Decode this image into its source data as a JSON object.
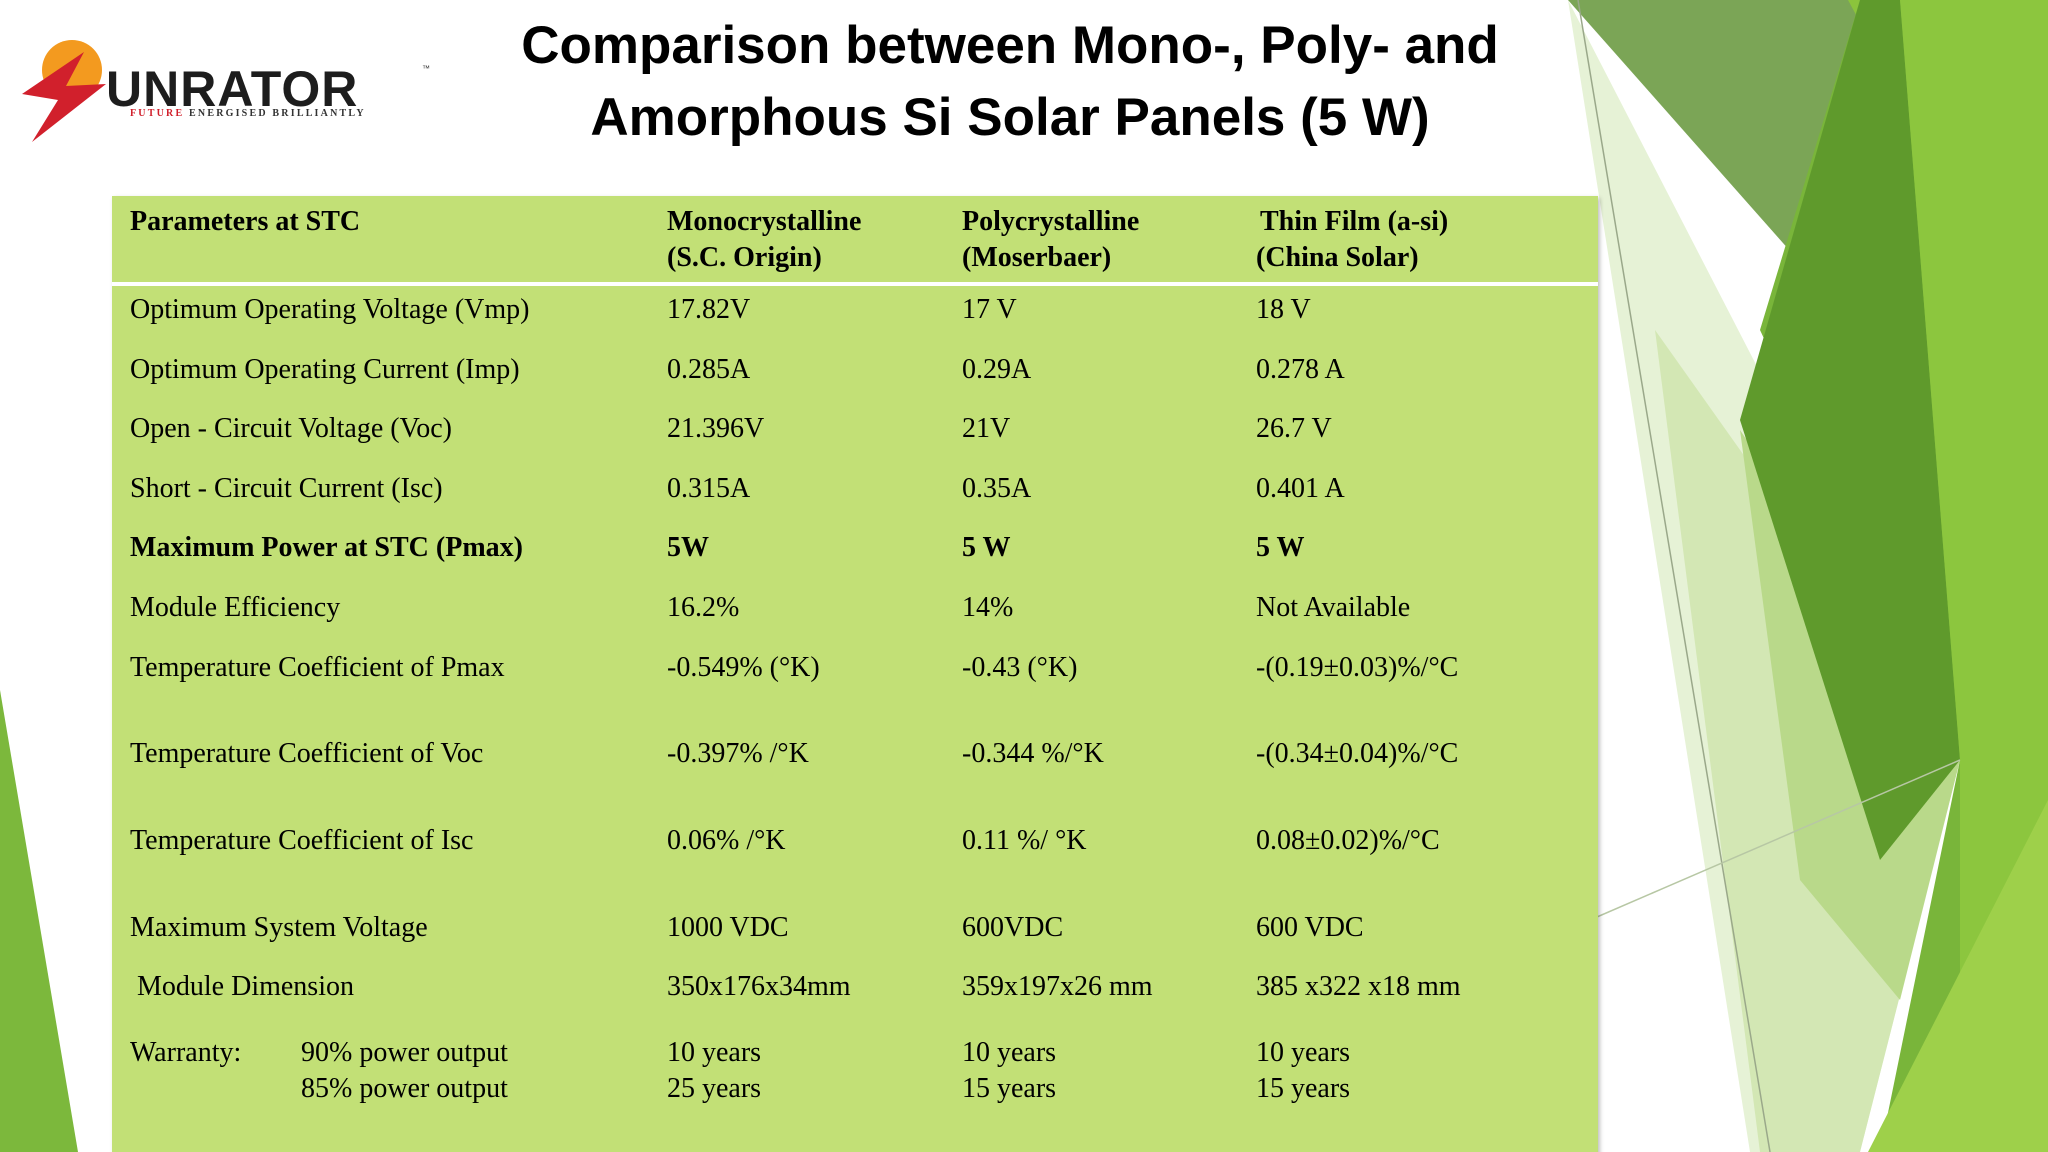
{
  "slide": {
    "title_line1": "Comparison between Mono-, Poly- and",
    "title_line2": "Amorphous Si Solar Panels (5 W)"
  },
  "logo": {
    "brand": "UNRATOR",
    "s_letter": "S",
    "trademark": "™",
    "tagline_red": "FUTURE",
    "tagline_rest": "ENERGISED BRILLIANTLY"
  },
  "colors": {
    "table_bg": "#c2e076",
    "logo_red": "#d1202c",
    "logo_orange": "#f39a1f",
    "deco_green_dark": "#4e8a24",
    "deco_green_mid": "#79b83a",
    "deco_green_light": "#a9d35a"
  },
  "table": {
    "headers": [
      {
        "line1": "Parameters at STC",
        "line2": ""
      },
      {
        "line1": "Monocrystalline",
        "line2": "(S.C. Origin)"
      },
      {
        "line1": "Polycrystalline",
        "line2": "(Moserbaer)"
      },
      {
        "line1": "Thin Film (a-si)",
        "line2": "(China Solar)"
      }
    ],
    "rows": [
      {
        "param": "Optimum Operating Voltage (Vmp)",
        "mono": "17.82V",
        "poly": "17 V",
        "thin": "18 V"
      },
      {
        "param": "Optimum Operating Current (Imp)",
        "mono": "0.285A",
        "poly": "0.29A",
        "thin": "0.278 A"
      },
      {
        "param": "Open - Circuit Voltage (Voc)",
        "mono": "21.396V",
        "poly": "21V",
        "thin": "26.7 V"
      },
      {
        "param": "Short - Circuit Current (Isc)",
        "mono": "0.315A",
        "poly": "0.35A",
        "thin": "0.401 A"
      },
      {
        "param": "Maximum Power at STC (Pmax)",
        "mono": "5W",
        "poly": "5 W",
        "thin": "5 W"
      },
      {
        "param": "Module Efficiency",
        "mono": "16.2%",
        "poly": "14%",
        "thin": "Not Available"
      },
      {
        "param": "Temperature Coefficient of Pmax",
        "mono": "-0.549% (°K)",
        "poly": "-0.43 (°K)",
        "thin": "-(0.19±0.03)%/°C"
      },
      {
        "param": "Temperature Coefficient of Voc",
        "mono": "-0.397% /°K",
        "poly": "-0.344 %/°K",
        "thin": "-(0.34±0.04)%/°C"
      },
      {
        "param": "Temperature Coefficient of Isc",
        "mono": "0.06% /°K",
        "poly": "0.11 %/ °K",
        "thin": "0.08±0.02)%/°C"
      },
      {
        "param": "Maximum System Voltage",
        "mono": "1000 VDC",
        "poly": "600VDC",
        "thin": "600 VDC"
      },
      {
        "param": "Module Dimension",
        "mono": "350x176x34mm",
        "poly": "359x197x26 mm",
        "thin": "385 x322 x18 mm"
      }
    ],
    "warranty": {
      "label": "Warranty:",
      "line1": "90% power output",
      "line2": "85% power output",
      "mono": [
        "10 years",
        "25 years"
      ],
      "poly": [
        "10 years",
        "15 years"
      ],
      "thin": [
        "10 years",
        "15 years"
      ]
    }
  }
}
